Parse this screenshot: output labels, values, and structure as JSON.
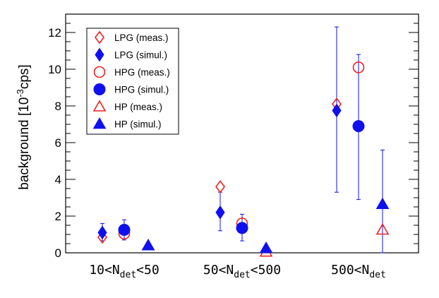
{
  "chart_data": {
    "type": "scatter",
    "title": "",
    "xlabel": "",
    "ylabel": "background [10⁻³cps]",
    "ylabel_parts": {
      "base": "background [10",
      "exp": "-3",
      "rest": "cps]"
    },
    "ylim": [
      0,
      13
    ],
    "yticks": [
      0,
      2,
      4,
      6,
      8,
      10,
      12
    ],
    "grid": false,
    "categories": [
      {
        "label": "10<N_det<50",
        "pre": "10<N",
        "sub": "det",
        "post": "<50"
      },
      {
        "label": "50<N_det<500",
        "pre": "50<N",
        "sub": "det",
        "post": "<500"
      },
      {
        "label": "500<N_det",
        "pre": "500<N",
        "sub": "det",
        "post": ""
      }
    ],
    "legend_position": "top-left",
    "series": [
      {
        "name": "LPG (meas.)",
        "marker": "diamond",
        "filled": false,
        "color": "#ee2222",
        "values": [
          0.85,
          3.6,
          8.1
        ],
        "errors": [
          null,
          null,
          null
        ]
      },
      {
        "name": "LPG (simul.)",
        "marker": "diamond",
        "filled": true,
        "color": "#1010ee",
        "values": [
          1.1,
          2.2,
          7.75
        ],
        "errors": [
          [
            0.65,
            1.6
          ],
          [
            1.2,
            3.3
          ],
          [
            3.3,
            12.3
          ]
        ]
      },
      {
        "name": "HPG (meas.)",
        "marker": "circle",
        "filled": false,
        "color": "#ee2222",
        "values": [
          1.05,
          1.6,
          10.1
        ],
        "errors": [
          null,
          null,
          null
        ]
      },
      {
        "name": "HPG (simul.)",
        "marker": "circle",
        "filled": true,
        "color": "#1010ee",
        "values": [
          1.25,
          1.35,
          6.9
        ],
        "errors": [
          [
            0.7,
            1.8
          ],
          [
            0.65,
            2.1
          ],
          [
            2.9,
            10.8
          ]
        ]
      },
      {
        "name": "HP (meas.)",
        "marker": "triangle",
        "filled": false,
        "color": "#ee2222",
        "values": [
          0.4,
          0.05,
          1.25
        ],
        "errors": [
          null,
          null,
          null
        ]
      },
      {
        "name": "HP (simul.)",
        "marker": "triangle",
        "filled": true,
        "color": "#1010ee",
        "values": [
          0.4,
          0.25,
          2.65
        ],
        "errors": [
          null,
          null,
          [
            0,
            5.6
          ]
        ]
      }
    ]
  }
}
